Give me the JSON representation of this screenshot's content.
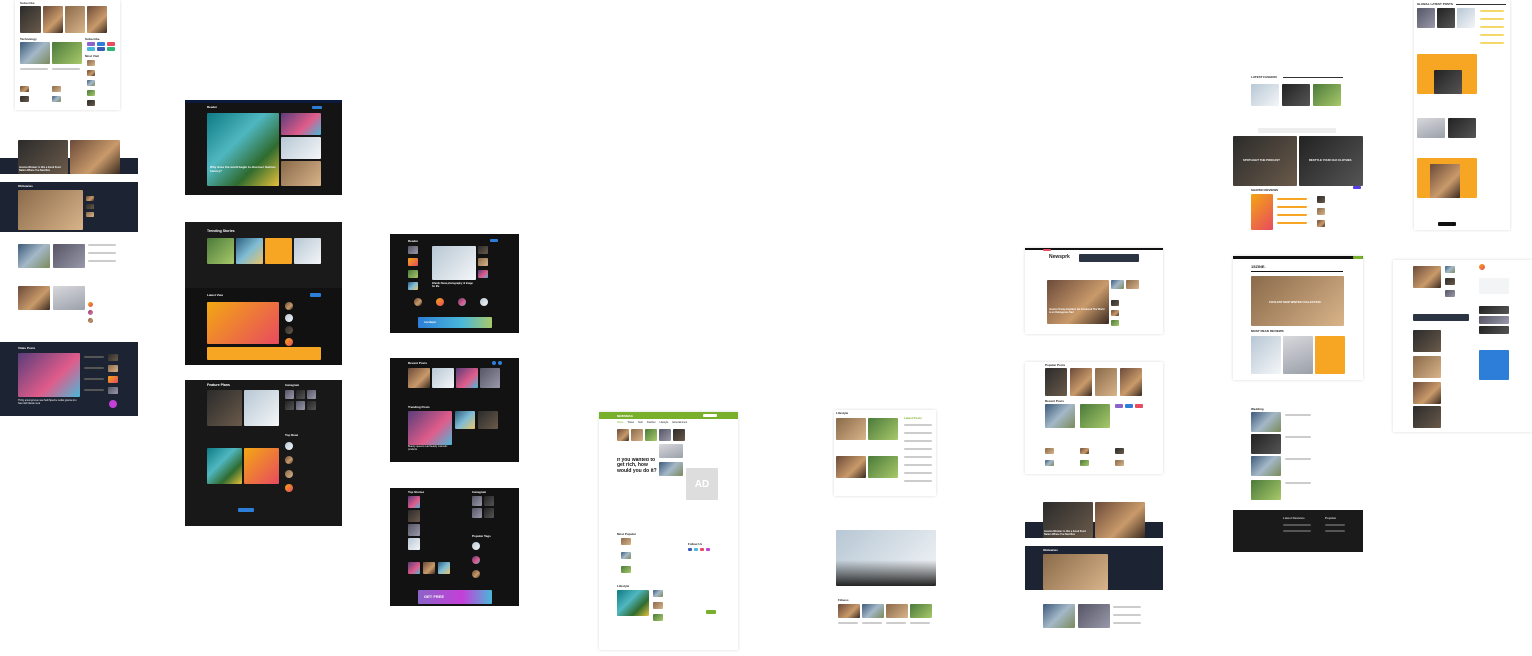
{
  "t01": {
    "section1": "Subscribe",
    "section2": "Technology",
    "section3": "Subscribe",
    "section4": "Most Visit"
  },
  "t02": {
    "headline": "Jessica Woman: Is this a Good Food Nation Where You Sacrifice",
    "section": "Obituaries"
  },
  "t03": {
    "section": "Video Posts",
    "headline": "Thrtty annonymous new Self-Spectre rediss granne kru has mild Naode nera"
  },
  "t04": {
    "logo": "Reader",
    "headline": "Why does the world begin to discover fashion history?"
  },
  "t05": {
    "title": "Trending Stories",
    "section2": "Latest View"
  },
  "t06": {
    "title": "Feature Plans",
    "side": "Instagram",
    "side2": "Top Read",
    "button": "Load More"
  },
  "t07": {
    "logo": "Reader",
    "headline": "Infantis Nova photography of image for life",
    "banner": "nordvpn"
  },
  "t08": {
    "title": "Recent Posts",
    "section2": "Trending Posts",
    "headline": "Beauty queens read beauty cosmetic products"
  },
  "t09": {
    "title": "Top Stories",
    "side": "Instagram",
    "side2": "Popular Tags",
    "cta": "GET FREE"
  },
  "t10": {
    "logo": "NEWSMAG",
    "nav": [
      "Home",
      "Travel",
      "Tech",
      "Fashion",
      "Lifestyle",
      "Entertainment"
    ],
    "headline": "If you wanted to get rich, how would you do it?",
    "ad": "AD",
    "section2": "Most Popular",
    "section3": "Lifestyle",
    "section4": "Follow Us"
  },
  "t11": {
    "section": "Lifestyle",
    "section2": "Latest Posts"
  },
  "t12": {
    "section": "Fitness"
  },
  "t13": {
    "logo": "Newsprk",
    "headline": "Jessica Trump Explains the Facebook The World is an Outrageous Sad"
  },
  "t14": {
    "section": "Popular Posts",
    "section2": "Recent Posts"
  },
  "t15": {
    "headline": "Jessica Woman: Is this a Good Food Nation Where You Sacrifice",
    "section": "Obituaries"
  },
  "t16": {
    "section": "LATEST FASHION",
    "banner1": "SPOTLIGHT THE PODCAST",
    "banner2": "RESTYLE YOUR OLD CLOTHES",
    "section2": "SHAPED REVIEWS"
  },
  "t17": {
    "logo": "15ZINE.",
    "banner": "COOLEST NEW WINTER COLLECTION",
    "section": "MOST READ REVIEWS"
  },
  "t18": {
    "section": "GLOBAL LATEST POSTS"
  },
  "t19": {
    "section": "Wedding",
    "section2": "Latest Reviews",
    "section3": "Popular"
  }
}
